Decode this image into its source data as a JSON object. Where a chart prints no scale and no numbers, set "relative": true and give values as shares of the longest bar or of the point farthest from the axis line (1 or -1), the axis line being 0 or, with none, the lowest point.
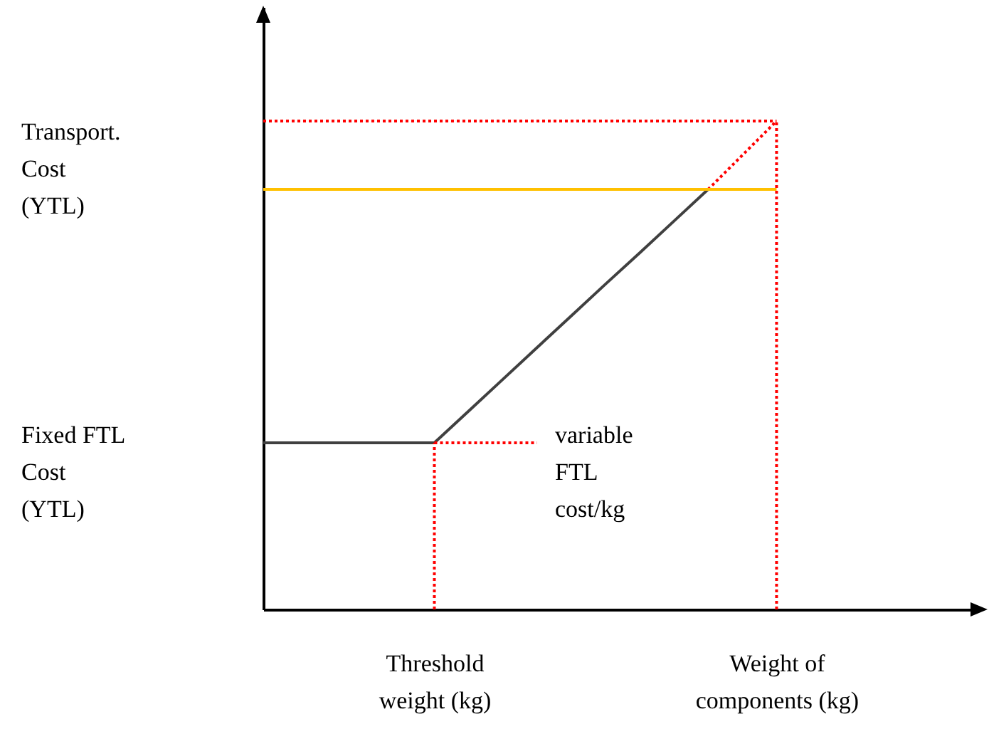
{
  "chart_data": {
    "type": "line",
    "relative": true,
    "categories": [
      null,
      null,
      null,
      null,
      null,
      "Threshold\nweight (kg)",
      null,
      null,
      null,
      null,
      null,
      null,
      null,
      null,
      null,
      "Weight of\ncomponents (kg)",
      null,
      null,
      null,
      null,
      null,
      null
    ],
    "series": [
      {
        "color": "#404040",
        "line_style": "solid",
        "values": [
          0.341,
          0.341,
          0.341,
          0.341,
          0.341,
          0.341,
          0.406,
          0.471,
          0.536,
          0.601,
          0.666,
          0.73,
          0.795,
          0.86,
          null,
          null,
          null,
          null,
          null,
          null,
          null,
          null
        ]
      },
      {
        "color": "#ff0000",
        "line_style": "dotted",
        "values": [
          null,
          null,
          null,
          null,
          null,
          null,
          null,
          null,
          null,
          null,
          null,
          null,
          null,
          0.86,
          0.93,
          1,
          null,
          null,
          null,
          null,
          null,
          null
        ]
      },
      {
        "color": "#ff0000",
        "line_style": "dotted",
        "values": [
          1,
          1,
          1,
          1,
          1,
          1,
          1,
          1,
          1,
          1,
          1,
          1,
          1,
          1,
          1,
          1,
          null,
          null,
          null,
          null,
          null,
          null
        ]
      },
      {
        "color": "#ffc000",
        "line_style": "solid",
        "values": [
          0.86,
          0.86,
          0.86,
          0.86,
          0.86,
          0.86,
          0.86,
          0.86,
          0.86,
          0.86,
          0.86,
          0.86,
          0.86,
          0.86,
          0.86,
          0.86,
          null,
          null,
          null,
          null,
          null,
          null
        ]
      },
      {
        "color": "#ff0000",
        "line_style": "dotted",
        "values": [
          null,
          null,
          null,
          null,
          null,
          0.341,
          0.341,
          0.341,
          0.341,
          null,
          null,
          null,
          null,
          null,
          null,
          null,
          null,
          null,
          null,
          null,
          null,
          null
        ]
      }
    ],
    "ref_lines": [
      {
        "axis": "x",
        "value": "Threshold\nweight (kg)",
        "color": "#ff0000",
        "line_style": "dotted"
      },
      {
        "axis": "x",
        "value": "Weight of\ncomponents (kg)",
        "color": "#ff0000",
        "line_style": "dotted"
      }
    ],
    "annotations": [
      "Transport.\nCost\n(YTL)",
      "Fixed FTL\nCost\n(YTL)",
      "variable\nFTL\ncost/kg"
    ],
    "marker": "none"
  }
}
